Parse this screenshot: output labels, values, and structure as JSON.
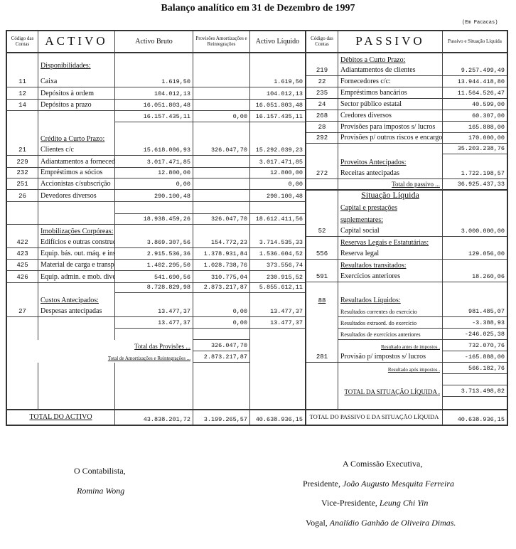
{
  "title": "Balanço analítico em 31 de Dezembro de 1997",
  "unit": "(Em Pacacas)",
  "activo": {
    "headers": {
      "code": "Código das Contas",
      "label": "ACTIVO",
      "bruto": "Activo Bruto",
      "prov": "Provisões Amortizações e Reintegrações",
      "liquido": "Activo Líquido"
    },
    "rows": [
      {
        "kind": "header",
        "label": "Disponibilidades:"
      },
      {
        "kind": "item",
        "code": "11",
        "label": "Caixa",
        "bruto": "1.619,50",
        "liquido": "1.619,50"
      },
      {
        "kind": "item",
        "code": "12",
        "label": "Depósitos à ordem",
        "bruto": "104.012,13",
        "liquido": "104.012,13"
      },
      {
        "kind": "item",
        "code": "14",
        "label": "Depósitos a prazo",
        "bruto": "16.051.803,48",
        "liquido": "16.051.803,48"
      },
      {
        "kind": "subtotal",
        "bruto": "16.157.435,11",
        "prov": "0,00",
        "liquido": "16.157.435,11"
      },
      {
        "kind": "header",
        "label": "Crédito a Curto Prazo:"
      },
      {
        "kind": "item",
        "code": "21",
        "label": "Clientes c/c",
        "bruto": "15.618.086,93",
        "prov": "326.047,70",
        "liquido": "15.292.039,23"
      },
      {
        "kind": "item",
        "code": "229",
        "label": "Adiantamentos a fornecedores",
        "bruto": "3.017.471,85",
        "liquido": "3.017.471,85"
      },
      {
        "kind": "item",
        "code": "232",
        "label": "Empréstimos a sócios",
        "bruto": "12.800,00",
        "liquido": "12.800,00"
      },
      {
        "kind": "item",
        "code": "251",
        "label": "Accionistas c/subscrição",
        "bruto": "0,00",
        "liquido": "0,00"
      },
      {
        "kind": "item",
        "code": "26",
        "label": "Devedores diversos",
        "bruto": "290.100,48",
        "liquido": "290.100,48"
      },
      {
        "kind": "blank"
      },
      {
        "kind": "subtotal",
        "bruto": "18.938.459,26",
        "prov": "326.047,70",
        "liquido": "18.612.411,56"
      },
      {
        "kind": "header",
        "label": "Imobilizações Corpóreas:"
      },
      {
        "kind": "item",
        "code": "422",
        "label": "Edifícios e outras construções",
        "bruto": "3.869.307,56",
        "prov": "154.772,23",
        "liquido": "3.714.535,33"
      },
      {
        "kind": "item",
        "code": "423",
        "label": "Equip. bás. out. máq. e instal.",
        "bruto": "2.915.536,36",
        "prov": "1.378.931,84",
        "liquido": "1.536.604,52"
      },
      {
        "kind": "item",
        "code": "425",
        "label": "Material de carga e transporte",
        "bruto": "1.402.295,50",
        "prov": "1.028.738,76",
        "liquido": "373.556,74"
      },
      {
        "kind": "item",
        "code": "426",
        "label": "Equip. admin. e mob. diverso",
        "bruto": "541.690,56",
        "prov": "310.775,04",
        "liquido": "230.915,52"
      },
      {
        "kind": "subtotal",
        "bruto": "8.728.829,98",
        "prov": "2.873.217,87",
        "liquido": "5.855.612,11"
      },
      {
        "kind": "header",
        "label": "Custos Antecipados:"
      },
      {
        "kind": "item",
        "code": "27",
        "label": "Despesas antecipadas",
        "bruto": "13.477,37",
        "prov": "0,00",
        "liquido": "13.477,37"
      },
      {
        "kind": "subtotal",
        "bruto": "13.477,37",
        "prov": "0,00",
        "liquido": "13.477,37"
      },
      {
        "kind": "blank"
      },
      {
        "kind": "total",
        "label": "Total das Provisões ...",
        "prov": "326.047,70"
      },
      {
        "kind": "total-small",
        "label": "Total de Amortizações e Reintegrações ...",
        "prov": "2.873.217,87"
      },
      {
        "kind": "blank"
      }
    ],
    "total": {
      "label": "TOTAL DO ACTIVO",
      "bruto": "43.838.201,72",
      "prov": "3.199.265,57",
      "liquido": "40.638.936,15"
    }
  },
  "passivo": {
    "headers": {
      "code": "Código das Contas",
      "label": "PASSIVO",
      "value": "Passivo e Situação Líquida"
    },
    "rows": [
      {
        "kind": "header",
        "label": "Débitos a Curto Prazo:"
      },
      {
        "kind": "item",
        "code": "219",
        "label": "Adiantamentos de clientes",
        "value": "9.257.499,49"
      },
      {
        "kind": "item",
        "code": "22",
        "label": "Fornecedores c/c:",
        "value": "13.944.418,80"
      },
      {
        "kind": "item",
        "code": "235",
        "label": "Empréstimos bancários",
        "value": "11.564.526,47"
      },
      {
        "kind": "item",
        "code": "24",
        "label": "Sector público estatal",
        "value": "40.599,00"
      },
      {
        "kind": "item",
        "code": "268",
        "label": "Credores diversos",
        "value": "60.307,00"
      },
      {
        "kind": "item",
        "code": "28",
        "label": "Provisões para impostos s/ lucros",
        "value": "165.888,00"
      },
      {
        "kind": "item",
        "code": "292",
        "label": "Provisões p/ outros riscos e encargos",
        "value": "170.000,00"
      },
      {
        "kind": "subtotal",
        "value": "35.203.238,76"
      },
      {
        "kind": "header",
        "label": "Proveitos Antecipados:"
      },
      {
        "kind": "item",
        "code": "272",
        "label": "Receitas antecipadas",
        "value": "1.722.198,57"
      },
      {
        "kind": "total",
        "label": "Total do passivo ...",
        "value": "36.925.437,33"
      },
      {
        "kind": "big",
        "label": "Situação Líquida"
      },
      {
        "kind": "header",
        "label": "Capital e prestações"
      },
      {
        "kind": "header",
        "label": "suplementares:"
      },
      {
        "kind": "item",
        "code": "52",
        "label": "Capital social",
        "value": "3.000.000,00"
      },
      {
        "kind": "header",
        "label": "Reservas Legais e Estatutárias:"
      },
      {
        "kind": "item",
        "code": "556",
        "label": "Reserva legal",
        "value": "129.056,00"
      },
      {
        "kind": "header",
        "label": "Resultados transitados:"
      },
      {
        "kind": "item",
        "code": "591",
        "label": "Exercícios anteriores",
        "value": "18.260,06"
      },
      {
        "kind": "blank"
      },
      {
        "kind": "header",
        "code": "88",
        "label": "Resultados Líquidos:"
      },
      {
        "kind": "item-small",
        "label": "Resultados correntes do exercício",
        "value": "981.485,07"
      },
      {
        "kind": "item-small",
        "label": "Resultados extraord. do exercício",
        "value": "-3.388,93"
      },
      {
        "kind": "item-small",
        "label": "Resultados de exercícios anteriores",
        "value": "-246.025,38"
      },
      {
        "kind": "total-small",
        "label": "Resultado antes de impostos .",
        "value": "732.070,76"
      },
      {
        "kind": "item",
        "code": "281",
        "label": "Provisão p/ impostos s/ lucros",
        "value": "-165.888,00"
      },
      {
        "kind": "total-small",
        "label": "Resultado após impostos .",
        "value": "566.182,76"
      },
      {
        "kind": "blank"
      },
      {
        "kind": "total",
        "label": "TOTAL DA SITUAÇÃO LÍQUIDA .",
        "value": "3.713.498,82"
      },
      {
        "kind": "blank"
      }
    ],
    "total": {
      "label": "TOTAL DO PASSIVO E DA SITUAÇÃO LÍQUIDA",
      "value": "40.638.936,15"
    }
  },
  "signatures": {
    "accountant_title": "O Contabilista,",
    "accountant_name": "Romina Wong",
    "committee_title": "A Comissão Executiva,",
    "president_role": "Presidente,",
    "president_name": "João Augusto Mesquita Ferreira",
    "vice_role": "Vice-Presidente,",
    "vice_name": "Leung Chi Yin",
    "vogal_role": "Vogal,",
    "vogal_name": "Analídio Ganhão de Oliveira Dimas."
  }
}
